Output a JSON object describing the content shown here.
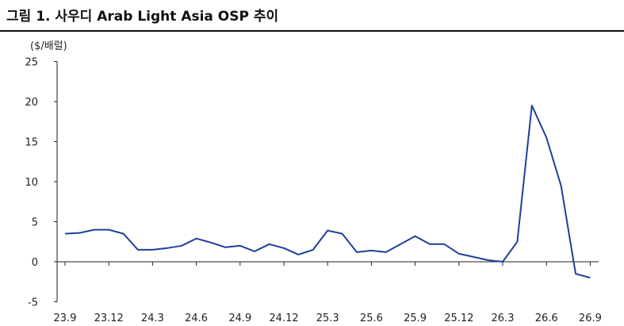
{
  "title": "그림 1. 사우디 Arab Light Asia OSP 추이",
  "chart_data": {
    "type": "line",
    "title": "그림 1. 사우디 Arab Light Asia OSP 추이",
    "ylabel": "($/배럴)",
    "xlabel": "",
    "ylim": [
      -5,
      25
    ],
    "yticks": [
      -5,
      0,
      5,
      10,
      15,
      20,
      25
    ],
    "ytick_labels": [
      "-5",
      "0",
      "5",
      "10",
      "15",
      "20",
      "25"
    ],
    "x_tick_labels": [
      "23.9",
      "23.12",
      "24.3",
      "24.6",
      "24.9",
      "24.12",
      "25.3",
      "25.6",
      "25.9",
      "25.12",
      "26.3",
      "26.6",
      "26.9"
    ],
    "grid": false,
    "legend": "none",
    "color": "#1f3f99",
    "x": [
      "23.9",
      "23.10",
      "23.11",
      "23.12",
      "24.1",
      "24.2",
      "24.3",
      "24.4",
      "24.5",
      "24.6",
      "24.7",
      "24.8",
      "24.9",
      "24.10",
      "24.11",
      "24.12",
      "25.1",
      "25.2",
      "25.3",
      "25.4",
      "25.5",
      "25.6",
      "25.7",
      "25.8",
      "25.9",
      "25.10",
      "25.11",
      "25.12",
      "26.1",
      "26.2",
      "26.3",
      "26.4",
      "26.5",
      "26.6",
      "26.7",
      "26.8",
      "26.9"
    ],
    "series": [
      {
        "values": [
          3.5,
          3.6,
          4.0,
          4.0,
          3.5,
          1.5,
          1.5,
          1.7,
          2.0,
          2.9,
          2.4,
          1.8,
          2.0,
          1.3,
          2.2,
          1.7,
          0.9,
          1.5,
          3.9,
          3.5,
          1.2,
          1.4,
          1.2,
          2.2,
          3.2,
          2.2,
          2.2,
          1.0,
          0.6,
          0.2,
          0.0,
          2.5,
          19.5,
          15.5,
          9.5,
          -1.5,
          -2.0
        ]
      }
    ]
  }
}
